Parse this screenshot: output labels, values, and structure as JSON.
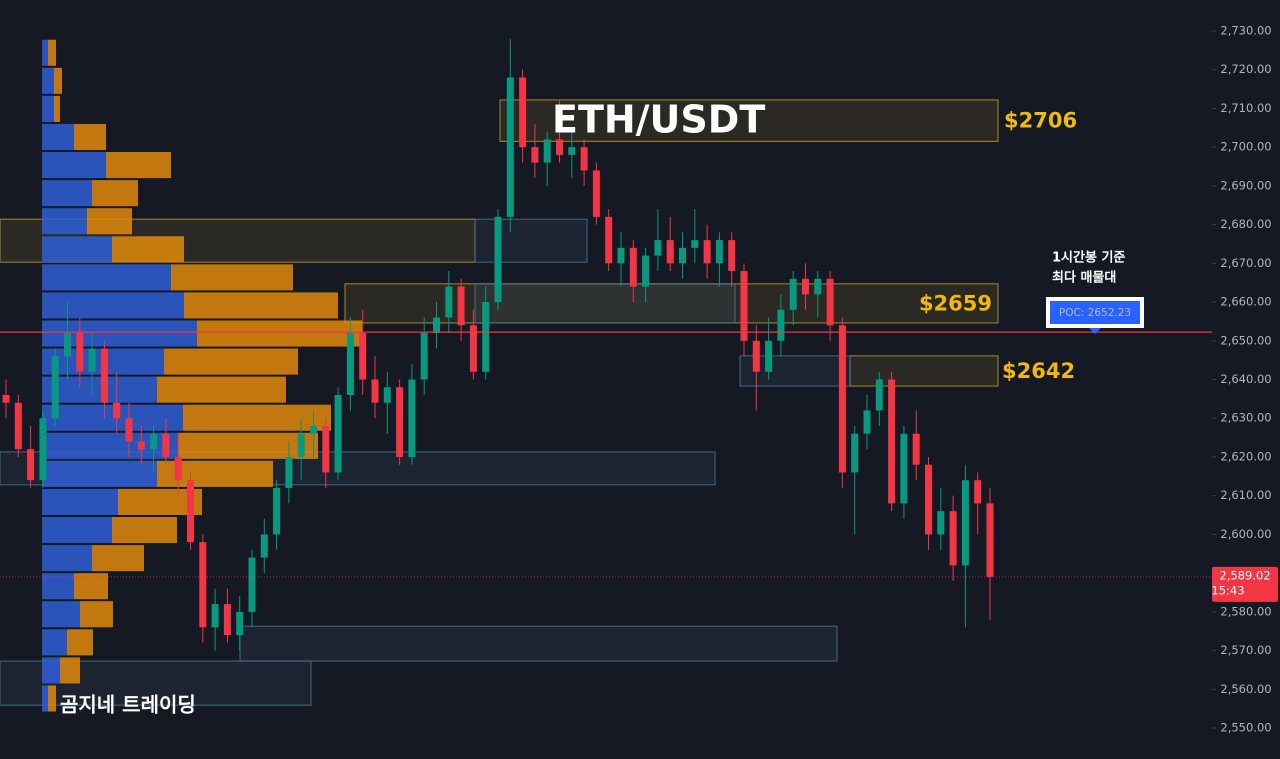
{
  "chart_data": {
    "type": "candlestick",
    "title": "ETH/USDT",
    "watermark": "곰지네 트레이딩",
    "annotation": [
      "1시간봉 기준",
      "최다 매물대"
    ],
    "ylim": [
      2542,
      2738
    ],
    "yticks": [
      {
        "value": 2550,
        "label": "2,550.00"
      },
      {
        "value": 2560,
        "label": "2,560.00"
      },
      {
        "value": 2570,
        "label": "2,570.00"
      },
      {
        "value": 2580,
        "label": "2,580.00"
      },
      {
        "value": 2590,
        "label": "2,590.00"
      },
      {
        "value": 2600,
        "label": "2,600.00"
      },
      {
        "value": 2610,
        "label": "2,610.00"
      },
      {
        "value": 2620,
        "label": "2,620.00"
      },
      {
        "value": 2630,
        "label": "2,630.00"
      },
      {
        "value": 2640,
        "label": "2,640.00"
      },
      {
        "value": 2650,
        "label": "2,650.00"
      },
      {
        "value": 2660,
        "label": "2,660.00"
      },
      {
        "value": 2670,
        "label": "2,670.00"
      },
      {
        "value": 2680,
        "label": "2,680.00"
      },
      {
        "value": 2690,
        "label": "2,690.00"
      },
      {
        "value": 2700,
        "label": "2,700.00"
      },
      {
        "value": 2710,
        "label": "2,710.00"
      },
      {
        "value": 2720,
        "label": "2,720.00"
      },
      {
        "value": 2730,
        "label": "2,730.00"
      }
    ],
    "up_color": "#089981",
    "down_color": "#f23645",
    "ohlc": [
      [
        2636,
        2640,
        2630,
        2634
      ],
      [
        2634,
        2636,
        2620,
        2622
      ],
      [
        2622,
        2628,
        2612,
        2614
      ],
      [
        2614,
        2632,
        2612,
        2630
      ],
      [
        2630,
        2648,
        2628,
        2646
      ],
      [
        2646,
        2660,
        2640,
        2652
      ],
      [
        2652,
        2656,
        2638,
        2642
      ],
      [
        2642,
        2652,
        2636,
        2648
      ],
      [
        2648,
        2650,
        2630,
        2634
      ],
      [
        2634,
        2642,
        2626,
        2630
      ],
      [
        2630,
        2634,
        2620,
        2624
      ],
      [
        2624,
        2628,
        2618,
        2622
      ],
      [
        2622,
        2628,
        2616,
        2626
      ],
      [
        2626,
        2630,
        2618,
        2620
      ],
      [
        2620,
        2626,
        2610,
        2614
      ],
      [
        2614,
        2616,
        2596,
        2598
      ],
      [
        2598,
        2600,
        2572,
        2576
      ],
      [
        2576,
        2586,
        2570,
        2582
      ],
      [
        2582,
        2586,
        2572,
        2574
      ],
      [
        2574,
        2584,
        2570,
        2580
      ],
      [
        2580,
        2596,
        2576,
        2594
      ],
      [
        2594,
        2604,
        2590,
        2600
      ],
      [
        2600,
        2614,
        2596,
        2612
      ],
      [
        2612,
        2624,
        2608,
        2620
      ],
      [
        2620,
        2630,
        2614,
        2626
      ],
      [
        2626,
        2632,
        2620,
        2628
      ],
      [
        2628,
        2630,
        2612,
        2616
      ],
      [
        2616,
        2638,
        2614,
        2636
      ],
      [
        2636,
        2656,
        2632,
        2652
      ],
      [
        2652,
        2658,
        2636,
        2640
      ],
      [
        2640,
        2646,
        2630,
        2634
      ],
      [
        2634,
        2642,
        2626,
        2638
      ],
      [
        2638,
        2640,
        2618,
        2620
      ],
      [
        2620,
        2644,
        2618,
        2640
      ],
      [
        2640,
        2656,
        2636,
        2652
      ],
      [
        2652,
        2660,
        2648,
        2656
      ],
      [
        2656,
        2668,
        2652,
        2664
      ],
      [
        2664,
        2666,
        2650,
        2654
      ],
      [
        2654,
        2658,
        2640,
        2642
      ],
      [
        2642,
        2664,
        2640,
        2660
      ],
      [
        2660,
        2684,
        2658,
        2682
      ],
      [
        2682,
        2728,
        2678,
        2718
      ],
      [
        2718,
        2720,
        2696,
        2700
      ],
      [
        2700,
        2706,
        2692,
        2696
      ],
      [
        2696,
        2704,
        2690,
        2702
      ],
      [
        2702,
        2712,
        2696,
        2698
      ],
      [
        2698,
        2704,
        2692,
        2700
      ],
      [
        2700,
        2702,
        2690,
        2694
      ],
      [
        2694,
        2696,
        2680,
        2682
      ],
      [
        2682,
        2684,
        2668,
        2670
      ],
      [
        2670,
        2678,
        2664,
        2674
      ],
      [
        2674,
        2676,
        2660,
        2664
      ],
      [
        2664,
        2674,
        2660,
        2672
      ],
      [
        2672,
        2684,
        2668,
        2676
      ],
      [
        2676,
        2682,
        2668,
        2670
      ],
      [
        2670,
        2678,
        2666,
        2674
      ],
      [
        2674,
        2684,
        2670,
        2676
      ],
      [
        2676,
        2680,
        2666,
        2670
      ],
      [
        2670,
        2678,
        2664,
        2676
      ],
      [
        2676,
        2678,
        2664,
        2668
      ],
      [
        2668,
        2670,
        2646,
        2650
      ],
      [
        2650,
        2654,
        2632,
        2642
      ],
      [
        2642,
        2656,
        2640,
        2650
      ],
      [
        2650,
        2662,
        2646,
        2658
      ],
      [
        2658,
        2668,
        2654,
        2666
      ],
      [
        2666,
        2670,
        2658,
        2662
      ],
      [
        2662,
        2668,
        2656,
        2666
      ],
      [
        2666,
        2668,
        2650,
        2654
      ],
      [
        2654,
        2656,
        2612,
        2616
      ],
      [
        2616,
        2628,
        2600,
        2626
      ],
      [
        2626,
        2636,
        2622,
        2632
      ],
      [
        2632,
        2642,
        2628,
        2640
      ],
      [
        2640,
        2642,
        2606,
        2608
      ],
      [
        2608,
        2628,
        2604,
        2626
      ],
      [
        2626,
        2632,
        2614,
        2618
      ],
      [
        2618,
        2620,
        2596,
        2600
      ],
      [
        2600,
        2612,
        2596,
        2606
      ],
      [
        2606,
        2610,
        2588,
        2592
      ],
      [
        2592,
        2618,
        2576,
        2614
      ],
      [
        2614,
        2616,
        2600,
        2608
      ],
      [
        2608,
        2612,
        2578,
        2589.02
      ]
    ],
    "volume_profile": {
      "bins": [
        2554,
        2561.25,
        2568.5,
        2575.75,
        2583,
        2590.25,
        2597.5,
        2604.75,
        2612,
        2619.25,
        2626.5,
        2633.75,
        2641,
        2648.25,
        2655.5,
        2662.75,
        2670,
        2677.25,
        2684.5,
        2691.75,
        2699,
        2706.25,
        2713.5,
        2720.75,
        2728
      ],
      "buy": [
        6,
        18,
        25,
        38,
        32,
        50,
        70,
        76,
        115,
        136,
        141,
        115,
        122,
        155,
        142,
        129,
        70,
        45,
        50,
        64,
        32,
        12,
        12,
        6
      ],
      "sell": [
        8,
        20,
        26,
        33,
        34,
        52,
        65,
        84,
        116,
        140,
        148,
        129,
        134,
        165,
        154,
        122,
        72,
        45,
        46,
        65,
        32,
        6,
        8,
        8
      ],
      "buy_color": "#2f5fd6",
      "sell_color": "#e08a0b"
    },
    "zones": [
      {
        "low": 2701.5,
        "high": 2712.2,
        "color": "#c9a227",
        "label": "$2706"
      },
      {
        "low": 2670.3,
        "high": 2681.4,
        "color": "#c9a227"
      },
      {
        "low": 2654.6,
        "high": 2664.7,
        "color": "#c9a227",
        "label": "$2659"
      },
      {
        "low": 2638.3,
        "high": 2646.1,
        "color": "#c9a227",
        "label": "$2642"
      },
      {
        "low": 2670.3,
        "high": 2681.4,
        "color": "#4f7a9a"
      },
      {
        "low": 2654.6,
        "high": 2664.7,
        "color": "#4f7a9a"
      },
      {
        "low": 2638.3,
        "high": 2646.1,
        "color": "#4f7a9a"
      },
      {
        "low": 2612.8,
        "high": 2621.3,
        "color": "#4f7a9a"
      },
      {
        "low": 2567.3,
        "high": 2576.3,
        "color": "#4f7a9a"
      },
      {
        "low": 2555.9,
        "high": 2567.3,
        "color": "#4f7a9a"
      }
    ],
    "poc": {
      "value": 2652.23,
      "label": "POC: 2652.23",
      "color": "#f23645"
    },
    "last_price": {
      "value": 2589.02,
      "label": "2,589.02",
      "time": "15:43",
      "color": "#f23645"
    }
  }
}
